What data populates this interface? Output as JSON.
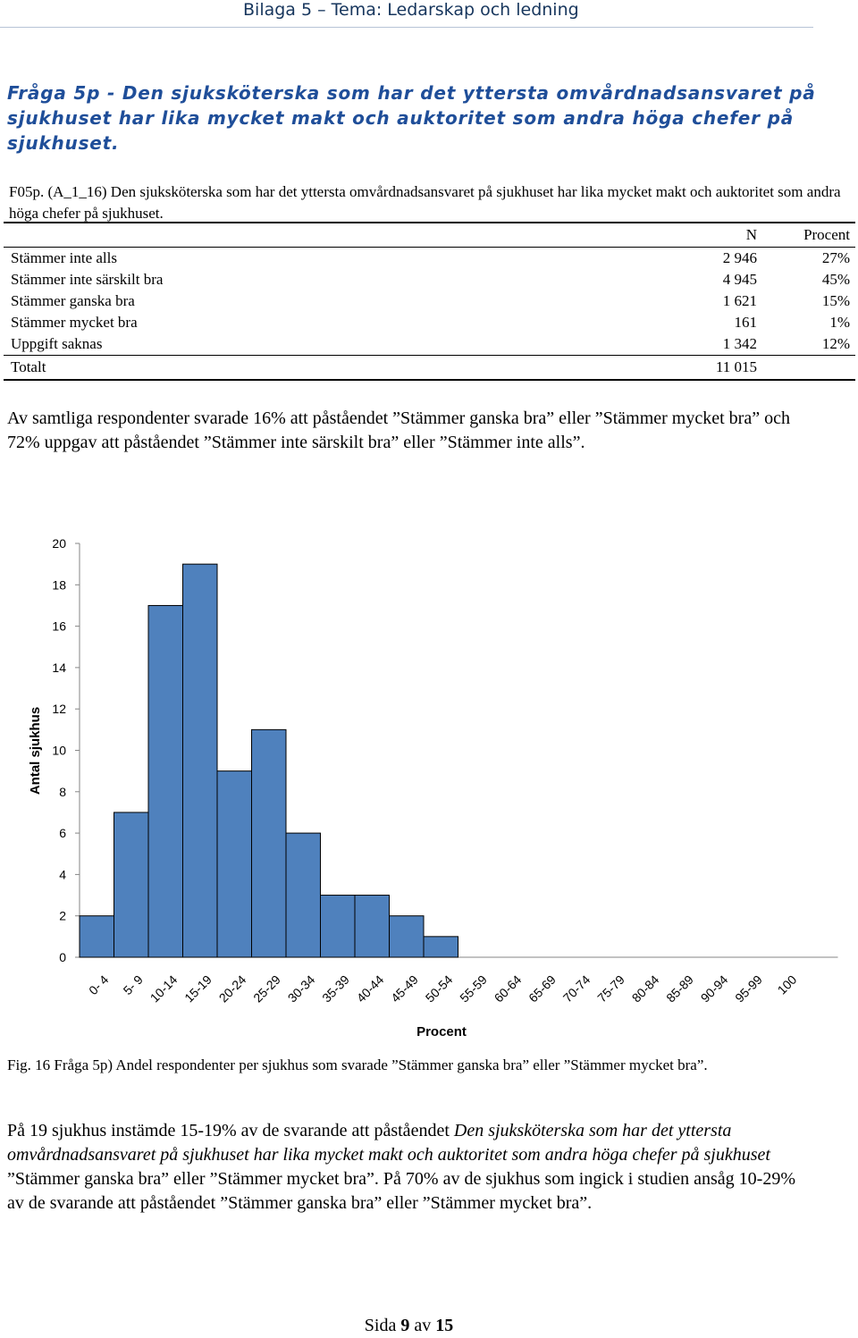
{
  "page_header": "Bilaga 5 – Tema: Ledarskap och ledning",
  "heading": "Fråga 5p - Den sjuksköterska som har det yttersta omvårdnadsansvaret på sjukhuset har lika mycket makt och auktoritet som andra höga chefer på sjukhuset.",
  "table_title": "F05p. (A_1_16) Den sjuksköterska som har det yttersta omvårdnadsansvaret på sjukhuset har lika mycket makt och auktoritet som andra höga chefer på sjukhuset.",
  "table": {
    "col_n": "N",
    "col_pct": "Procent",
    "rows": [
      {
        "label": "Stämmer inte alls",
        "n": "2 946",
        "pct": "27%"
      },
      {
        "label": "Stämmer inte särskilt bra",
        "n": "4 945",
        "pct": "45%"
      },
      {
        "label": "Stämmer ganska bra",
        "n": "1 621",
        "pct": "15%"
      },
      {
        "label": "Stämmer mycket bra",
        "n": "161",
        "pct": "1%"
      },
      {
        "label": "Uppgift saknas",
        "n": "1 342",
        "pct": "12%"
      }
    ],
    "total": {
      "label": "Totalt",
      "n": "11 015",
      "pct": ""
    }
  },
  "paragraph1": "Av samtliga respondenter svarade 16% att påståendet ”Stämmer ganska bra” eller ”Stämmer mycket bra” och 72% uppgav att påståendet ”Stämmer inte särskilt bra” eller ”Stämmer inte alls”.",
  "chart_data": {
    "type": "bar",
    "title": "",
    "xlabel": "Procent",
    "ylabel": "Antal sjukhus",
    "ylim": [
      0,
      20
    ],
    "yticks": [
      0,
      2,
      4,
      6,
      8,
      10,
      12,
      14,
      16,
      18,
      20
    ],
    "categories": [
      "0- 4",
      "5- 9",
      "10-14",
      "15-19",
      "20-24",
      "25-29",
      "30-34",
      "35-39",
      "40-44",
      "45-49",
      "50-54",
      "55-59",
      "60-64",
      "65-69",
      "70-74",
      "75-79",
      "80-84",
      "85-89",
      "90-94",
      "95-99",
      "100"
    ],
    "values": [
      2,
      7,
      17,
      19,
      9,
      11,
      6,
      3,
      3,
      2,
      1,
      0,
      0,
      0,
      0,
      0,
      0,
      0,
      0,
      0,
      0
    ],
    "bar_color": "#4f81bd",
    "grid": false
  },
  "figure_caption": "Fig. 16 Fråga 5p) Andel respondenter per sjukhus som svarade ”Stämmer ganska bra” eller ”Stämmer mycket bra”.",
  "paragraph2": {
    "part1": "På 19 sjukhus instämde 15-19% av de svarande att påståendet ",
    "italic": "Den sjuksköterska som har det yttersta omvårdnadsansvaret på sjukhuset har lika mycket makt och auktoritet som andra höga chefer på sjukhuset",
    "part2": " ”Stämmer ganska bra” eller ”Stämmer mycket bra”. På 70%  av de sjukhus som ingick i studien ansåg 10-29% av de svarande att påståendet ”Stämmer ganska bra” eller ”Stämmer mycket bra”."
  },
  "footer": {
    "prefix": "Sida ",
    "page": "9",
    "middle": " av ",
    "total": "15"
  }
}
